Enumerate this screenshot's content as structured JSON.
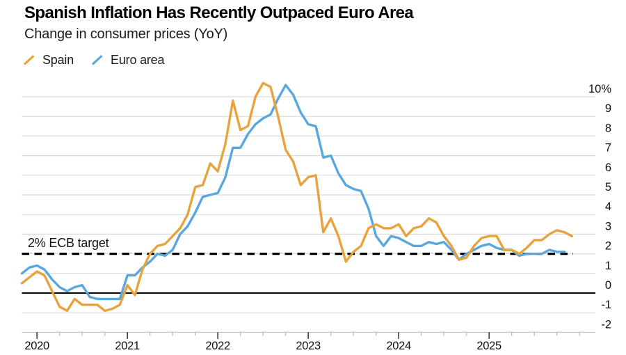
{
  "header": {
    "title": "Spanish Inflation Has Recently Outpaced Euro Area",
    "subtitle": "Change in consumer prices (YoY)"
  },
  "legend": {
    "items": [
      {
        "label": "Spain",
        "color": "#E8A33C"
      },
      {
        "label": "Euro area",
        "color": "#5AA7E0"
      }
    ]
  },
  "chart_data": {
    "type": "line",
    "title": "Spanish Inflation Has Recently Outpaced Euro Area",
    "subtitle": "Change in consumer prices (YoY)",
    "unit": "percent, year-over-year",
    "grid": true,
    "legend_position": "top-left",
    "x_axis": {
      "start": "2019-11",
      "tick_labels": [
        "2020",
        "2021",
        "2022",
        "2023",
        "2024",
        "2025"
      ],
      "minor_tick_interval_months": 3
    },
    "y_axis": {
      "tick_labels": [
        "10%",
        "9",
        "8",
        "7",
        "6",
        "5",
        "4",
        "3",
        "2",
        "1",
        "0",
        "-1",
        "-2"
      ],
      "tick_values": [
        10,
        9,
        8,
        7,
        6,
        5,
        4,
        3,
        2,
        1,
        0,
        -1,
        -2
      ],
      "ylim": [
        -2,
        10
      ]
    },
    "target_line": {
      "label": "2% ECB target",
      "value": 2,
      "style": "dashed",
      "color": "#000000"
    },
    "zero_line": {
      "value": 0,
      "color": "#000000"
    },
    "series": [
      {
        "name": "Spain",
        "color": "#E8A33C",
        "start": "2019-11",
        "end": "2025-12",
        "values": [
          0.5,
          0.8,
          1.1,
          0.9,
          0.1,
          -0.7,
          -0.9,
          -0.3,
          -0.6,
          -0.6,
          -0.6,
          -0.9,
          -0.8,
          -0.6,
          0.4,
          -0.1,
          1.2,
          2.0,
          2.4,
          2.5,
          2.9,
          3.3,
          4.0,
          5.4,
          5.5,
          6.6,
          6.2,
          7.6,
          9.8,
          8.3,
          8.5,
          10.0,
          10.7,
          10.5,
          9.0,
          7.3,
          6.7,
          5.5,
          5.9,
          6.0,
          3.1,
          3.8,
          2.9,
          1.6,
          2.1,
          2.4,
          3.3,
          3.5,
          3.3,
          3.3,
          3.5,
          2.9,
          3.3,
          3.4,
          3.8,
          3.6,
          2.9,
          2.4,
          1.7,
          1.8,
          2.4,
          2.8,
          2.9,
          2.9,
          2.2,
          2.2,
          2.0,
          2.3,
          2.7,
          2.7,
          3.0,
          3.2,
          3.1,
          2.9
        ]
      },
      {
        "name": "Euro area",
        "color": "#5AA7E0",
        "start": "2019-11",
        "end": "2025-11",
        "values": [
          1.0,
          1.3,
          1.4,
          1.2,
          0.7,
          0.3,
          0.1,
          0.3,
          0.4,
          -0.2,
          -0.3,
          -0.3,
          -0.3,
          -0.3,
          0.9,
          0.9,
          1.3,
          1.6,
          2.0,
          1.9,
          2.2,
          3.0,
          3.4,
          4.1,
          4.9,
          5.0,
          5.1,
          5.9,
          7.4,
          7.4,
          8.1,
          8.6,
          8.9,
          9.1,
          9.9,
          10.6,
          10.1,
          9.2,
          8.6,
          8.5,
          6.9,
          7.0,
          6.1,
          5.5,
          5.3,
          5.2,
          4.3,
          2.9,
          2.4,
          2.9,
          2.8,
          2.6,
          2.4,
          2.4,
          2.6,
          2.5,
          2.6,
          2.2,
          1.7,
          2.0,
          2.2,
          2.4,
          2.5,
          2.3,
          2.2,
          2.2,
          1.9,
          2.0,
          2.0,
          2.0,
          2.2,
          2.1,
          2.1
        ]
      }
    ]
  }
}
